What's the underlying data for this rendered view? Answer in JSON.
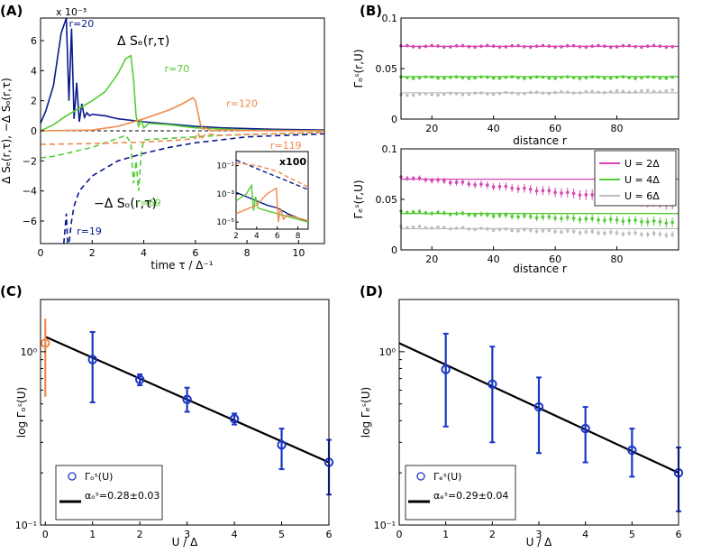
{
  "panels": {
    "A": {
      "label": "(A)",
      "xlabel": "time τ / Δ⁻¹",
      "ylabel": "Δ Sₑ(r,τ), −Δ Sₒ(r,τ)",
      "exponent": "x 10⁻³",
      "title_e": "Δ Sₑ(r,τ)",
      "title_o": "−Δ Sₒ(r,τ)",
      "inset_label": "x100"
    },
    "B": {
      "label": "(B)",
      "xlabel": "distance r",
      "ylabel_top": "Γₒˢ(r,U)",
      "ylabel_bottom": "Γₑˢ(r,U)"
    },
    "C": {
      "label": "(C)",
      "xlabel": "U / Δ",
      "ylabel": "log Γₒˢ(U)",
      "legend_marker": "Γₒˢ(U)",
      "legend_fit": "αₒˢ=0.28±0.03"
    },
    "D": {
      "label": "(D)",
      "xlabel": "U / Δ",
      "ylabel": "log Γₑˢ(U)",
      "legend_marker": "Γₑˢ(U)",
      "legend_fit": "αₑˢ=0.29±0.04"
    }
  },
  "colors": {
    "blue": "#0a1a8c",
    "green": "#55cc33",
    "orange": "#f08a4b",
    "magenta": "#d946b5",
    "gray": "#bdbdbd",
    "fit": "#000000",
    "marker": "#1a37c8"
  },
  "chart_data": [
    {
      "type": "line",
      "panel": "A",
      "title": "Δ Sₑ(r,τ) and −Δ Sₒ(r,τ)",
      "xlabel": "time τ / Δ⁻¹",
      "ylabel": "Δ Sₑ(r,τ), −Δ Sₒ(r,τ) (×10⁻³)",
      "xlim": [
        0,
        11
      ],
      "ylim": [
        -7.5,
        7.5
      ],
      "xticks": [
        0,
        2,
        4,
        6,
        8,
        10
      ],
      "yticks": [
        -6,
        -4,
        -2,
        0,
        2,
        4,
        6
      ],
      "series": [
        {
          "name": "r=20",
          "style": "solid",
          "color": "blue",
          "x": [
            0,
            0.2,
            0.5,
            0.8,
            1.0,
            1.1,
            1.2,
            1.3,
            1.4,
            1.5,
            1.6,
            1.7,
            1.8,
            1.9,
            2.0,
            2.5,
            3.0,
            4.0,
            5.0,
            6.0,
            7.0,
            9.0,
            11.0
          ],
          "y": [
            0.5,
            1.3,
            3.0,
            6.5,
            7.5,
            2.0,
            6.8,
            0.8,
            3.2,
            0.6,
            1.8,
            0.9,
            1.2,
            1.0,
            1.1,
            1.0,
            0.8,
            0.6,
            0.45,
            0.3,
            0.2,
            0.1,
            0.05
          ]
        },
        {
          "name": "r=70",
          "style": "solid",
          "color": "green",
          "x": [
            0,
            0.5,
            1.0,
            1.5,
            2.0,
            2.5,
            3.0,
            3.3,
            3.5,
            3.6,
            3.7,
            3.8,
            3.9,
            4.0,
            4.2,
            5.0,
            6.0,
            8.0,
            11.0
          ],
          "y": [
            0,
            0.4,
            1.0,
            1.5,
            2.0,
            2.6,
            3.8,
            4.8,
            5.0,
            3.5,
            1.0,
            0.3,
            0.7,
            0.2,
            0.5,
            0.4,
            0.2,
            0.05,
            0.0
          ]
        },
        {
          "name": "r=120",
          "style": "solid",
          "color": "orange",
          "x": [
            0,
            2.0,
            3.0,
            4.0,
            5.0,
            5.5,
            5.9,
            6.0,
            6.1,
            6.2,
            6.3,
            6.4,
            6.6,
            7.0,
            8.0,
            11.0
          ],
          "y": [
            0,
            0.05,
            0.3,
            0.8,
            1.4,
            1.8,
            2.2,
            2.0,
            1.2,
            0.4,
            0.1,
            0.2,
            0.0,
            0.05,
            0.02,
            0.0
          ]
        },
        {
          "name": "r=19",
          "style": "dashed",
          "color": "blue",
          "x": [
            0.9,
            1.0,
            1.05,
            1.1,
            1.2,
            1.3,
            1.5,
            2.0,
            3.0,
            4.0,
            5.0,
            6.0,
            7.0,
            8.0,
            11.0
          ],
          "y": [
            -7.5,
            -5.5,
            -7.5,
            -7.5,
            -6.0,
            -5.0,
            -4.0,
            -3.0,
            -2.0,
            -1.5,
            -1.1,
            -0.8,
            -0.6,
            -0.4,
            -0.2
          ]
        },
        {
          "name": "r=69",
          "style": "dashed",
          "color": "green",
          "x": [
            0,
            0.5,
            1.0,
            2.0,
            3.0,
            3.3,
            3.5,
            3.6,
            3.7,
            3.8,
            3.9,
            4.0,
            5.0,
            7.0,
            11.0
          ],
          "y": [
            -1.8,
            -1.7,
            -1.5,
            -1.1,
            -0.5,
            -0.3,
            -0.8,
            -3.5,
            -2.0,
            -4.0,
            -1.5,
            -0.6,
            -0.5,
            -0.3,
            -0.1
          ]
        },
        {
          "name": "r=119",
          "style": "dashed",
          "color": "orange",
          "x": [
            0,
            2.0,
            4.0,
            5.5,
            6.0,
            6.1,
            6.2,
            6.3,
            6.4,
            7.0,
            9.0,
            11.0
          ],
          "y": [
            -0.9,
            -0.85,
            -0.75,
            -0.6,
            -0.5,
            -0.1,
            -0.6,
            -0.4,
            -0.2,
            -0.3,
            -0.2,
            -0.1
          ]
        }
      ],
      "annotations": [
        "r=20",
        "r=70",
        "r=120",
        "r=119",
        "r=69",
        "r=19"
      ],
      "inset": {
        "label": "x100",
        "xlim": [
          2,
          9
        ],
        "xticks": [
          2,
          4,
          6,
          8
        ],
        "yticks_exp": [
          -1,
          -3,
          -5
        ],
        "series": [
          {
            "color": "blue",
            "style": "solid",
            "x": [
              2,
              3,
              4,
              5,
              6,
              7,
              8,
              9
            ],
            "y_log": [
              -2.9,
              -3.2,
              -3.5,
              -3.8,
              -4.0,
              -4.4,
              -4.7,
              -5.0
            ]
          },
          {
            "color": "blue",
            "style": "dashed",
            "x": [
              2,
              3,
              4,
              5,
              6,
              7,
              8,
              9
            ],
            "y_log": [
              -0.6,
              -0.9,
              -1.2,
              -1.5,
              -1.8,
              -2.1,
              -2.4,
              -2.7
            ]
          },
          {
            "color": "green",
            "style": "solid",
            "x": [
              2,
              3,
              3.5,
              3.7,
              3.9,
              4.1,
              5,
              7,
              9
            ],
            "y_log": [
              -3.5,
              -3.0,
              -2.4,
              -4.2,
              -3.2,
              -4.0,
              -4.2,
              -4.6,
              -5.0
            ]
          },
          {
            "color": "orange",
            "style": "solid",
            "x": [
              2,
              4,
              5,
              5.9,
              6.1,
              6.3,
              6.6,
              7,
              9
            ],
            "y_log": [
              -4.4,
              -3.8,
              -3.0,
              -2.6,
              -5.0,
              -4.0,
              -4.8,
              -4.5,
              -4.9
            ]
          },
          {
            "color": "orange",
            "style": "dashed",
            "x": [
              2,
              4,
              6,
              7,
              9
            ],
            "y_log": [
              -0.8,
              -1.0,
              -1.4,
              -1.8,
              -2.5
            ]
          }
        ]
      }
    },
    {
      "type": "scatter",
      "panel": "B-top",
      "xlabel": "distance r",
      "ylabel": "Γₒˢ(r,U)",
      "xlim": [
        10,
        100
      ],
      "ylim": [
        0,
        0.1
      ],
      "xticks": [
        20,
        40,
        60,
        80
      ],
      "yticks": [
        0,
        0.05,
        0.1
      ],
      "ytick_labels": [
        "0",
        "0.05",
        "0.1"
      ],
      "series": [
        {
          "name": "U = 2Δ",
          "color": "magenta",
          "mean": 0.072,
          "fit": 0.072,
          "err": 0.003
        },
        {
          "name": "U = 4Δ",
          "color": "green",
          "mean": 0.041,
          "fit": 0.042,
          "err": 0.002
        },
        {
          "name": "U = 6Δ",
          "color": "gray",
          "mean": 0.024,
          "fit": 0.026,
          "err": 0.002
        }
      ]
    },
    {
      "type": "scatter",
      "panel": "B-bottom",
      "xlabel": "distance r",
      "ylabel": "Γₑˢ(r,U)",
      "xlim": [
        10,
        100
      ],
      "ylim": [
        0,
        0.1
      ],
      "xticks": [
        20,
        40,
        60,
        80
      ],
      "yticks": [
        0,
        0.05,
        0.1
      ],
      "ytick_labels": [
        "0",
        "0.05",
        "0.1"
      ],
      "legend": [
        "U = 2Δ",
        "U = 4Δ",
        "U = 6Δ"
      ],
      "series": [
        {
          "name": "U = 2Δ",
          "color": "magenta",
          "start": 0.072,
          "end": 0.046,
          "fit": 0.07,
          "err": 0.004
        },
        {
          "name": "U = 4Δ",
          "color": "green",
          "start": 0.038,
          "end": 0.027,
          "fit": 0.036,
          "err": 0.003
        },
        {
          "name": "U = 6Δ",
          "color": "gray",
          "start": 0.023,
          "end": 0.015,
          "fit": 0.021,
          "err": 0.002
        }
      ]
    },
    {
      "type": "scatter",
      "panel": "C",
      "xlabel": "U / Δ",
      "ylabel": "log Γₒˢ(U)",
      "xlim": [
        -0.1,
        6
      ],
      "ylim_log": [
        0.1,
        2.0
      ],
      "yscale": "log",
      "xticks": [
        0,
        1,
        2,
        3,
        4,
        5,
        6
      ],
      "ytick_labels": [
        "10⁰",
        "10⁻¹"
      ],
      "x": [
        1,
        2,
        3,
        4,
        5,
        6
      ],
      "y": [
        0.9,
        0.69,
        0.53,
        0.41,
        0.29,
        0.23
      ],
      "yerr_low": [
        0.51,
        0.64,
        0.45,
        0.38,
        0.21,
        0.15
      ],
      "yerr_high": [
        1.3,
        0.74,
        0.62,
        0.44,
        0.36,
        0.31
      ],
      "extra_point": {
        "x": 0,
        "y": 1.12,
        "low": 0.55,
        "high": 1.55,
        "color": "orange"
      },
      "fit": {
        "x": [
          0,
          6
        ],
        "y": [
          1.22,
          0.23
        ],
        "label": "αₒˢ=0.28±0.03"
      },
      "legend": [
        "Γₒˢ(U)",
        "αₒˢ=0.28±0.03"
      ]
    },
    {
      "type": "scatter",
      "panel": "D",
      "xlabel": "U / Δ",
      "ylabel": "log Γₑˢ(U)",
      "xlim": [
        0,
        6
      ],
      "ylim_log": [
        0.1,
        2.0
      ],
      "yscale": "log",
      "xticks": [
        0,
        1,
        2,
        3,
        4,
        5,
        6
      ],
      "ytick_labels": [
        "10⁰",
        "10⁻¹"
      ],
      "x": [
        1,
        2,
        3,
        4,
        5,
        6
      ],
      "y": [
        0.79,
        0.65,
        0.48,
        0.36,
        0.27,
        0.2
      ],
      "yerr_low": [
        0.37,
        0.3,
        0.26,
        0.23,
        0.19,
        0.12
      ],
      "yerr_high": [
        1.27,
        1.07,
        0.71,
        0.48,
        0.36,
        0.28
      ],
      "fit": {
        "x": [
          0,
          6
        ],
        "y": [
          1.12,
          0.2
        ],
        "label": "αₑˢ=0.29±0.04"
      },
      "legend": [
        "Γₑˢ(U)",
        "αₑˢ=0.29±0.04"
      ]
    }
  ]
}
